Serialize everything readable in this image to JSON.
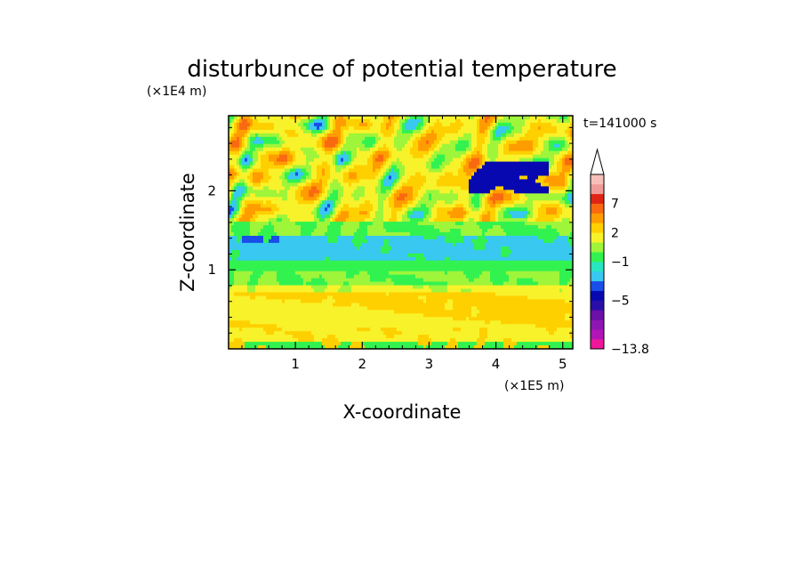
{
  "chart_data": {
    "type": "heatmap",
    "title": "disturbunce of potential temperature",
    "xlabel": "X-coordinate",
    "ylabel": "Z-coordinate",
    "x_unit": "(×1E5 m)",
    "y_unit": "(×1E4 m)",
    "time_label": "t=141000 s",
    "xlim": [
      0,
      5.15
    ],
    "ylim": [
      0,
      2.95
    ],
    "x_ticks": [
      1,
      2,
      3,
      4,
      5
    ],
    "y_ticks": [
      1,
      2
    ],
    "x_tick_labels": [
      "1",
      "2",
      "3",
      "4",
      "5"
    ],
    "y_tick_labels": [
      "1",
      "2"
    ],
    "colorbar": {
      "labels": [
        {
          "text": "7",
          "value": 7
        },
        {
          "text": "2",
          "value": 2
        },
        {
          "text": "−1",
          "value": -1
        },
        {
          "text": "−5",
          "value": -5
        },
        {
          "text": "−13.8",
          "value": -13.8
        }
      ],
      "levels": [
        -13.8,
        -11,
        -9,
        -7,
        -6,
        -5,
        -4,
        -3,
        -2,
        -1,
        0,
        1,
        2,
        3,
        5,
        7,
        9,
        11
      ],
      "colors": [
        "#f0169a",
        "#b214b8",
        "#8e16b4",
        "#6a0fa8",
        "#2a0ea8",
        "#0808b0",
        "#1a4ee8",
        "#38c8f0",
        "#28e6c0",
        "#32f250",
        "#9ef53a",
        "#f8f22a",
        "#ffd000",
        "#ff9d00",
        "#f96a10",
        "#e02414",
        "#f09a9a",
        "#f6c0b8"
      ],
      "extend_max": true
    },
    "colors": {
      "background": "#ffffff",
      "frame": "#000000"
    }
  }
}
